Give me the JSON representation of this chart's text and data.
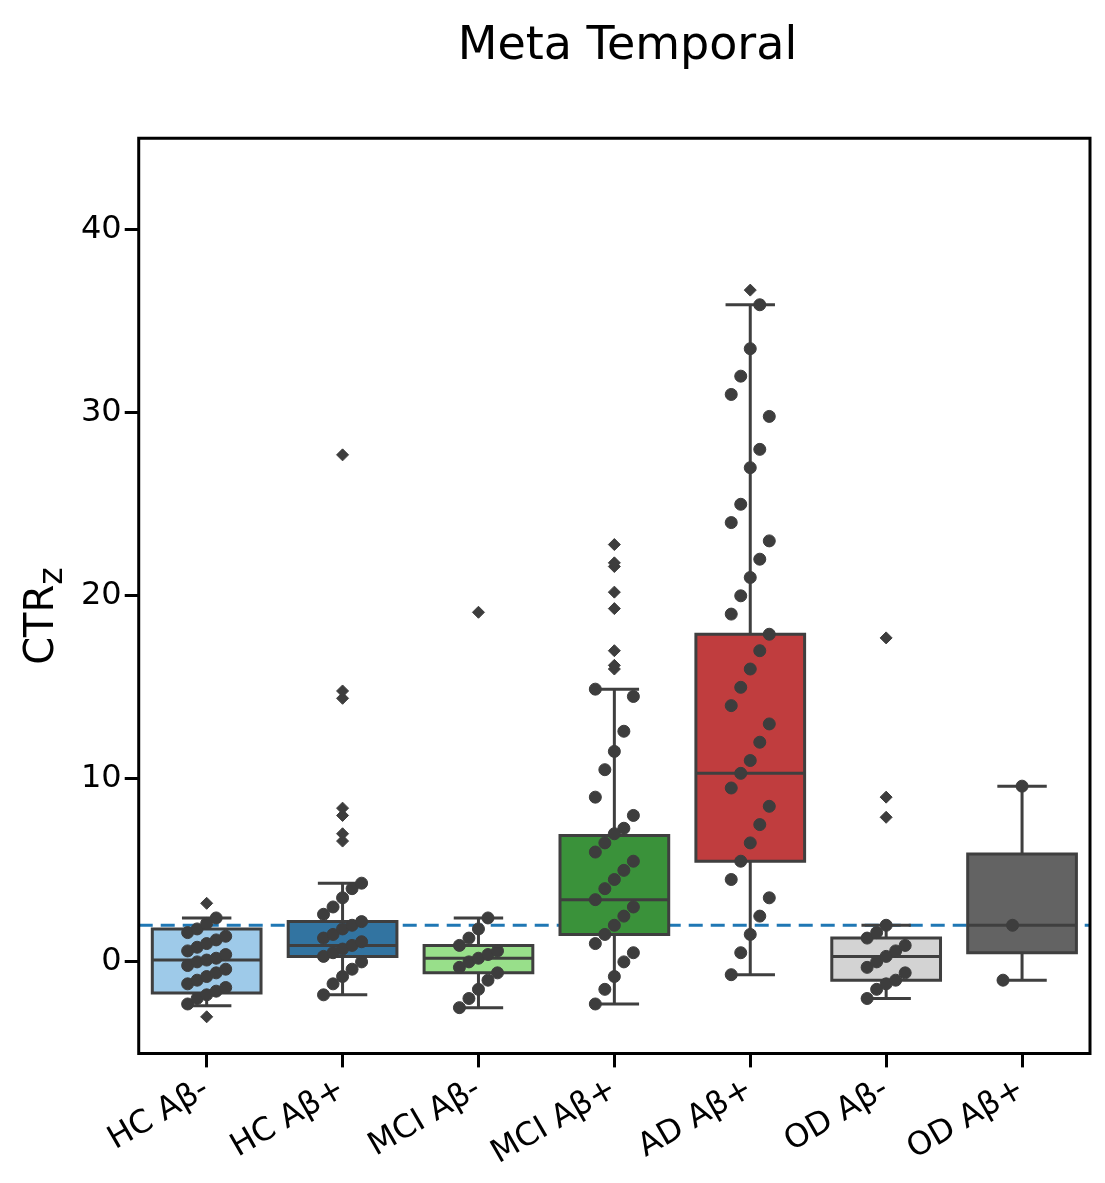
{
  "chart_data": {
    "type": "box",
    "title": "Meta Temporal",
    "ylabel": "CTR$_{z}$",
    "categories": [
      "HC Aβ-",
      "HC Aβ+",
      "MCI Aβ-",
      "MCI Aβ+",
      "AD Aβ+",
      "OD Aβ-",
      "OD Aβ+"
    ],
    "colors": [
      "#9ecae9",
      "#3274a1",
      "#98df8a",
      "#3a923a",
      "#c03d3e",
      "#d3d3d3",
      "#636363"
    ],
    "boxes": [
      {
        "low": -2.4,
        "q1": -1.7,
        "median": 0.1,
        "q3": 1.8,
        "high": 2.4,
        "outliers": [
          3.2,
          -3.0
        ]
      },
      {
        "low": -1.8,
        "q1": 0.3,
        "median": 0.9,
        "q3": 2.2,
        "high": 4.3,
        "outliers": [
          6.6,
          7.0,
          8.0,
          8.4,
          14.4,
          14.8,
          27.7
        ]
      },
      {
        "low": -2.5,
        "q1": -0.6,
        "median": 0.2,
        "q3": 0.9,
        "high": 2.4,
        "outliers": [
          19.1
        ]
      },
      {
        "low": -2.3,
        "q1": 1.5,
        "median": 3.4,
        "q3": 6.9,
        "high": 14.9,
        "outliers": [
          16.0,
          16.2,
          17.0,
          19.3,
          20.2,
          21.6,
          21.8,
          22.8
        ]
      },
      {
        "low": -0.7,
        "q1": 5.5,
        "median": 10.3,
        "q3": 17.9,
        "high": 35.9,
        "outliers": [
          36.7
        ]
      },
      {
        "low": -2.0,
        "q1": -1.0,
        "median": 0.3,
        "q3": 1.3,
        "high": 2.0,
        "outliers": [
          7.9,
          9.0,
          17.7
        ]
      },
      {
        "low": -1.0,
        "q1": 0.5,
        "median": 2.0,
        "q3": 5.9,
        "high": 9.6
      }
    ],
    "series": [
      {
        "type": "scatter",
        "color": "#3d3d3d",
        "x": [
          "HC Aβ-",
          "HC Aβ-",
          "HC Aβ-",
          "HC Aβ-",
          "HC Aβ-",
          "HC Aβ-",
          "HC Aβ-",
          "HC Aβ-",
          "HC Aβ-",
          "HC Aβ-",
          "HC Aβ-",
          "HC Aβ-",
          "HC Aβ-",
          "HC Aβ-",
          "HC Aβ-",
          "HC Aβ-",
          "HC Aβ-",
          "HC Aβ-",
          "HC Aβ-",
          "HC Aβ-",
          "HC Aβ-",
          "HC Aβ-",
          "HC Aβ-",
          "HC Aβ-",
          "HC Aβ+",
          "HC Aβ+",
          "HC Aβ+",
          "HC Aβ+",
          "HC Aβ+",
          "HC Aβ+",
          "HC Aβ+",
          "HC Aβ+",
          "HC Aβ+",
          "HC Aβ+",
          "HC Aβ+",
          "HC Aβ+",
          "HC Aβ+",
          "HC Aβ+",
          "HC Aβ+",
          "HC Aβ+",
          "HC Aβ+",
          "HC Aβ+",
          "HC Aβ+",
          "HC Aβ+",
          "MCI Aβ-",
          "MCI Aβ-",
          "MCI Aβ-",
          "MCI Aβ-",
          "MCI Aβ-",
          "MCI Aβ-",
          "MCI Aβ-",
          "MCI Aβ-",
          "MCI Aβ-",
          "MCI Aβ-",
          "MCI Aβ-",
          "MCI Aβ-",
          "MCI Aβ-",
          "MCI Aβ-",
          "MCI Aβ+",
          "MCI Aβ+",
          "MCI Aβ+",
          "MCI Aβ+",
          "MCI Aβ+",
          "MCI Aβ+",
          "MCI Aβ+",
          "MCI Aβ+",
          "MCI Aβ+",
          "MCI Aβ+",
          "MCI Aβ+",
          "MCI Aβ+",
          "MCI Aβ+",
          "MCI Aβ+",
          "MCI Aβ+",
          "MCI Aβ+",
          "MCI Aβ+",
          "MCI Aβ+",
          "MCI Aβ+",
          "MCI Aβ+",
          "MCI Aβ+",
          "MCI Aβ+",
          "MCI Aβ+",
          "MCI Aβ+",
          "MCI Aβ+",
          "MCI Aβ+",
          "AD Aβ+",
          "AD Aβ+",
          "AD Aβ+",
          "AD Aβ+",
          "AD Aβ+",
          "AD Aβ+",
          "AD Aβ+",
          "AD Aβ+",
          "AD Aβ+",
          "AD Aβ+",
          "AD Aβ+",
          "AD Aβ+",
          "AD Aβ+",
          "AD Aβ+",
          "AD Aβ+",
          "AD Aβ+",
          "AD Aβ+",
          "AD Aβ+",
          "AD Aβ+",
          "AD Aβ+",
          "AD Aβ+",
          "AD Aβ+",
          "AD Aβ+",
          "AD Aβ+",
          "AD Aβ+",
          "AD Aβ+",
          "AD Aβ+",
          "AD Aβ+",
          "AD Aβ+",
          "AD Aβ+",
          "AD Aβ+",
          "AD Aβ+",
          "AD Aβ+",
          "AD Aβ+",
          "OD Aβ-",
          "OD Aβ-",
          "OD Aβ-",
          "OD Aβ-",
          "OD Aβ-",
          "OD Aβ-",
          "OD Aβ-",
          "OD Aβ-",
          "OD Aβ-",
          "OD Aβ-",
          "OD Aβ-",
          "OD Aβ-",
          "OD Aβ-",
          "OD Aβ+",
          "OD Aβ+",
          "OD Aβ+"
        ],
        "values": [
          -2.3,
          -2.0,
          -1.8,
          -1.6,
          -1.4,
          -1.2,
          -1.0,
          -0.8,
          -0.6,
          -0.4,
          -0.2,
          0,
          0.1,
          0.2,
          0.4,
          0.6,
          0.8,
          1.0,
          1.2,
          1.4,
          1.6,
          1.8,
          2.1,
          2.4,
          -1.8,
          -1.2,
          -0.8,
          -0.4,
          0,
          0.3,
          0.5,
          0.7,
          0.9,
          1.1,
          1.3,
          1.5,
          1.8,
          2.0,
          2.2,
          2.6,
          3.0,
          3.5,
          4.0,
          4.3,
          -2.5,
          -2.0,
          -1.5,
          -1.0,
          -0.6,
          -0.3,
          0,
          0.2,
          0.4,
          0.6,
          0.9,
          1.3,
          1.8,
          2.4,
          -2.3,
          -1.5,
          -0.8,
          0,
          0.5,
          1.0,
          1.5,
          2.0,
          2.5,
          3.0,
          3.4,
          4.0,
          4.5,
          5.0,
          5.5,
          6.0,
          6.5,
          7.0,
          7.3,
          8.0,
          9.0,
          10.5,
          11.5,
          12.6,
          14.5,
          14.9,
          -0.7,
          0.5,
          1.5,
          2.5,
          3.5,
          4.5,
          5.5,
          6.5,
          7.5,
          8.5,
          9.5,
          10.3,
          11,
          12,
          13,
          14,
          15,
          16,
          17,
          17.9,
          19,
          20,
          21,
          22,
          23,
          24,
          25,
          27,
          28,
          29.8,
          31,
          32,
          33.5,
          35.9,
          -2.0,
          -1.5,
          -1.2,
          -1.0,
          -0.6,
          -0.3,
          0,
          0.3,
          0.6,
          0.9,
          1.3,
          1.6,
          2.0,
          -1.0,
          2.0,
          9.6
        ]
      }
    ],
    "ref_lines": [
      {
        "axis": "y",
        "value": 2,
        "color": "#1f77b4",
        "line_style": "dashed"
      }
    ],
    "ylim": [
      -5,
      45
    ],
    "yticks": [
      0,
      10,
      20,
      30,
      40
    ],
    "grid": false,
    "legend": false,
    "marker": "circle"
  }
}
